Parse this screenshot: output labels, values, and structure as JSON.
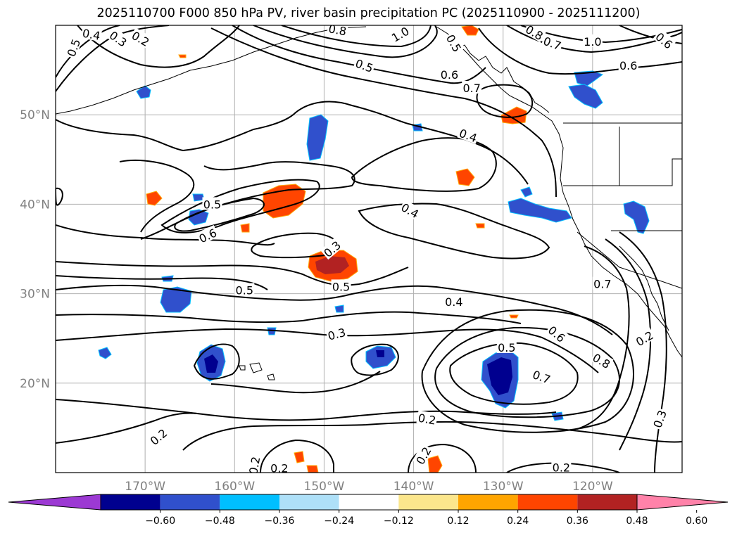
{
  "title": "2025110700 F000 850 hPa PV, river basin precipitation PC (2025110900 - 2025111200)",
  "map": {
    "lon_range": [
      -180,
      -110
    ],
    "lat_range": [
      10,
      60
    ],
    "lon_ticks": [
      {
        "lon": -170,
        "label": "170°W"
      },
      {
        "lon": -160,
        "label": "160°W"
      },
      {
        "lon": -150,
        "label": "150°W"
      },
      {
        "lon": -140,
        "label": "140°W"
      },
      {
        "lon": -130,
        "label": "130°W"
      },
      {
        "lon": -120,
        "label": "120°W"
      }
    ],
    "lat_ticks": [
      {
        "lat": 50,
        "label": "50°N"
      },
      {
        "lat": 40,
        "label": "40°N"
      },
      {
        "lat": 30,
        "label": "30°N"
      },
      {
        "lat": 20,
        "label": "20°N"
      }
    ],
    "contour_labels": [
      {
        "text": "0.5",
        "lon": -178.0,
        "lat": 57.5,
        "rot": -70
      },
      {
        "text": "0.4",
        "lon": -176.0,
        "lat": 59.0,
        "rot": 10
      },
      {
        "text": "0.3",
        "lon": -173.0,
        "lat": 58.5,
        "rot": 35
      },
      {
        "text": "0.2",
        "lon": -170.5,
        "lat": 58.5,
        "rot": 30
      },
      {
        "text": "0.8",
        "lon": -148.5,
        "lat": 59.5,
        "rot": 10
      },
      {
        "text": "0.5",
        "lon": -145.5,
        "lat": 55.5,
        "rot": 20
      },
      {
        "text": "1.0",
        "lon": -141.5,
        "lat": 59.0,
        "rot": -30
      },
      {
        "text": "0.5",
        "lon": -135.5,
        "lat": 58.0,
        "rot": 60
      },
      {
        "text": "0.6",
        "lon": -136.0,
        "lat": 54.5,
        "rot": 0
      },
      {
        "text": "0.7",
        "lon": -133.5,
        "lat": 53.0,
        "rot": 0
      },
      {
        "text": "0.8",
        "lon": -126.5,
        "lat": 59.2,
        "rot": 30
      },
      {
        "text": "0.7",
        "lon": -124.5,
        "lat": 58.0,
        "rot": 20
      },
      {
        "text": "1.0",
        "lon": -120.0,
        "lat": 58.2,
        "rot": 0
      },
      {
        "text": "0.6",
        "lon": -116.0,
        "lat": 55.5,
        "rot": 0
      },
      {
        "text": "0.6",
        "lon": -112.0,
        "lat": 58.3,
        "rot": 40
      },
      {
        "text": "0.4",
        "lon": -133.9,
        "lat": 47.7,
        "rot": 20
      },
      {
        "text": "0.4",
        "lon": -140.4,
        "lat": 39.3,
        "rot": 30
      },
      {
        "text": "0.5",
        "lon": -162.5,
        "lat": 40.0,
        "rot": 0
      },
      {
        "text": "0.6",
        "lon": -163.0,
        "lat": 36.5,
        "rot": -25
      },
      {
        "text": "0.3",
        "lon": -149.1,
        "lat": 35.0,
        "rot": -40
      },
      {
        "text": "0.5",
        "lon": -148.1,
        "lat": 30.8,
        "rot": 0
      },
      {
        "text": "0.5",
        "lon": -158.9,
        "lat": 30.4,
        "rot": 0
      },
      {
        "text": "0.4",
        "lon": -135.5,
        "lat": 29.1,
        "rot": 0
      },
      {
        "text": "0.3",
        "lon": -148.6,
        "lat": 25.5,
        "rot": -15
      },
      {
        "text": "0.5",
        "lon": -129.6,
        "lat": 24.0,
        "rot": 0
      },
      {
        "text": "0.6",
        "lon": -124.0,
        "lat": 25.5,
        "rot": 40
      },
      {
        "text": "0.7",
        "lon": -125.7,
        "lat": 20.7,
        "rot": 20
      },
      {
        "text": "0.8",
        "lon": -119.0,
        "lat": 22.5,
        "rot": 30
      },
      {
        "text": "0.7",
        "lon": -118.9,
        "lat": 31.1,
        "rot": 0
      },
      {
        "text": "0.2",
        "lon": -114.2,
        "lat": 25.0,
        "rot": -30
      },
      {
        "text": "0.3",
        "lon": -112.5,
        "lat": 16.0,
        "rot": -70
      },
      {
        "text": "0.2",
        "lon": -138.5,
        "lat": 16.0,
        "rot": 10
      },
      {
        "text": "0.2",
        "lon": -168.5,
        "lat": 14.0,
        "rot": -40
      },
      {
        "text": "0.2",
        "lon": -138.9,
        "lat": 11.9,
        "rot": -60
      },
      {
        "text": "0.2",
        "lon": -123.5,
        "lat": 10.6,
        "rot": 0
      },
      {
        "text": "0.2",
        "lon": -157.8,
        "lat": 10.8,
        "rot": -80
      },
      {
        "text": "0.2",
        "lon": -155.0,
        "lat": 10.5,
        "rot": 0
      }
    ]
  },
  "colorbar": {
    "colors": [
      "#9c39d3",
      "#00008f",
      "#3050cc",
      "#00bfff",
      "#aee0f8",
      "#ffffff",
      "#fbe68c",
      "#ffa500",
      "#ff4500",
      "#b22222",
      "#ff82a9"
    ],
    "tick_labels": [
      "−0.60",
      "−0.48",
      "−0.36",
      "−0.24",
      "−0.12",
      "0.12",
      "0.24",
      "0.36",
      "0.48",
      "0.60"
    ]
  }
}
